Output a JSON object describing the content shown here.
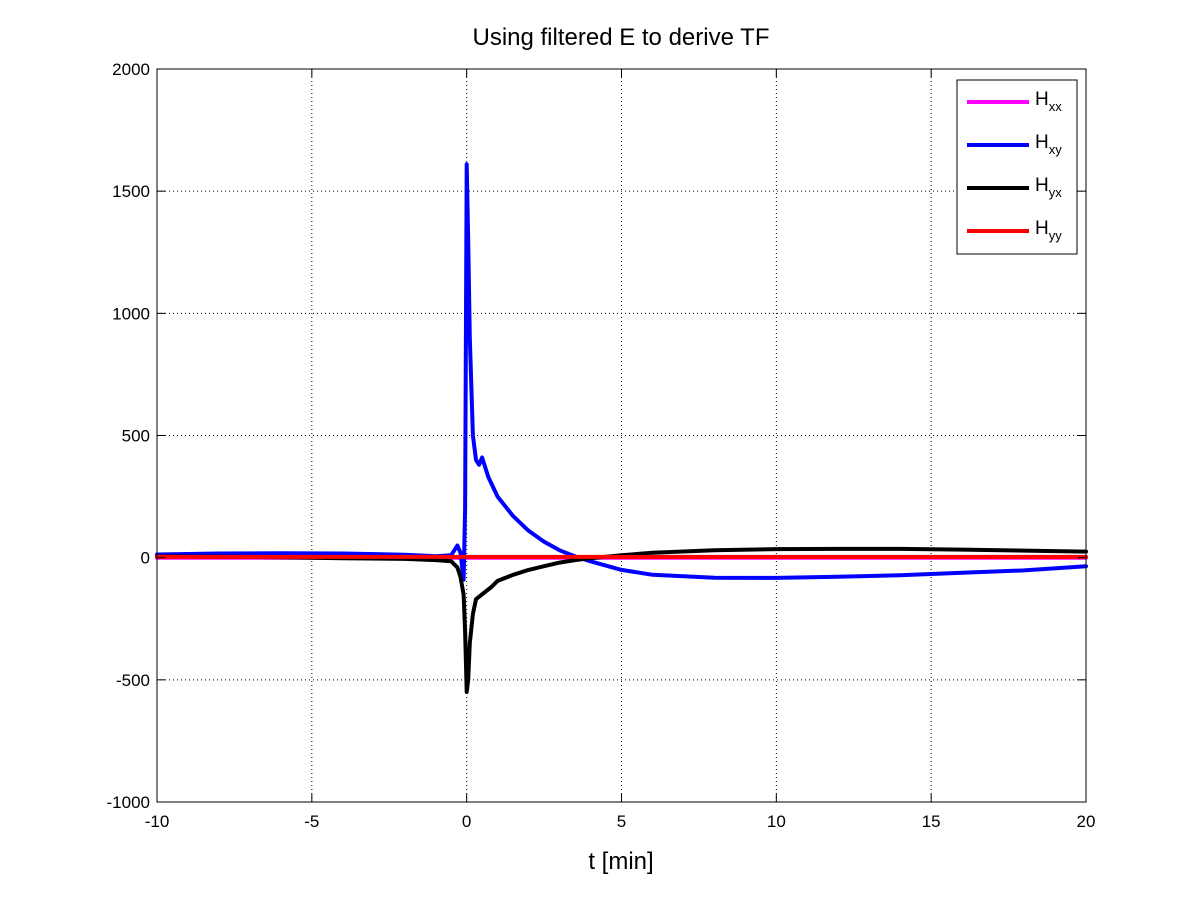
{
  "chart_data": {
    "type": "line",
    "title": "Using filtered E to derive TF",
    "xlabel": "t [min]",
    "ylabel": "",
    "xlim": [
      -10,
      20
    ],
    "ylim": [
      -1000,
      2000
    ],
    "xticks": [
      -10,
      -5,
      0,
      5,
      10,
      15,
      20
    ],
    "yticks": [
      -1000,
      -500,
      0,
      500,
      1000,
      1500,
      2000
    ],
    "grid": true,
    "legend_position": "top-right",
    "series": [
      {
        "name": "H",
        "subscript": "xx",
        "color": "#ff00ff",
        "x": [
          -10,
          20
        ],
        "y": [
          0,
          0
        ]
      },
      {
        "name": "H",
        "subscript": "xy",
        "color": "#0000ff",
        "x": [
          -10,
          -8,
          -6,
          -4,
          -2,
          -1,
          -0.5,
          -0.3,
          -0.2,
          -0.1,
          -0.05,
          0,
          0.05,
          0.1,
          0.2,
          0.3,
          0.4,
          0.5,
          0.7,
          1,
          1.5,
          2,
          2.5,
          3,
          3.5,
          4,
          5,
          6,
          8,
          10,
          12,
          14,
          16,
          18,
          20
        ],
        "y": [
          13,
          17,
          18,
          17,
          12,
          6,
          10,
          50,
          20,
          -90,
          200,
          1610,
          1300,
          900,
          500,
          400,
          380,
          410,
          330,
          250,
          170,
          110,
          65,
          30,
          5,
          -15,
          -50,
          -70,
          -82,
          -83,
          -78,
          -72,
          -62,
          -52,
          -35
        ]
      },
      {
        "name": "H",
        "subscript": "yx",
        "color": "#000000",
        "x": [
          -10,
          -6,
          -4,
          -2,
          -1,
          -0.5,
          -0.3,
          -0.2,
          -0.1,
          -0.05,
          0,
          0.05,
          0.1,
          0.2,
          0.3,
          0.5,
          0.8,
          1,
          1.5,
          2,
          2.5,
          3,
          3.5,
          4,
          5,
          6,
          8,
          10,
          12,
          14,
          16,
          18,
          20
        ],
        "y": [
          5,
          2,
          -2,
          -5,
          -10,
          -15,
          -40,
          -80,
          -150,
          -300,
          -550,
          -500,
          -350,
          -230,
          -170,
          -150,
          -120,
          -95,
          -70,
          -50,
          -35,
          -20,
          -10,
          -2,
          10,
          20,
          30,
          35,
          36,
          36,
          33,
          29,
          25
        ]
      },
      {
        "name": "H",
        "subscript": "yy",
        "color": "#ff0000",
        "x": [
          -10,
          20
        ],
        "y": [
          3,
          3
        ]
      }
    ]
  }
}
